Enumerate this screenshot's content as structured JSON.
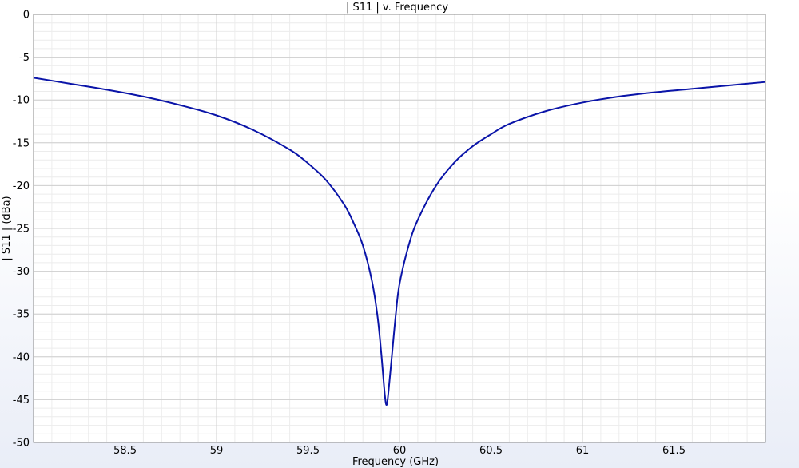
{
  "chart_data": {
    "type": "line",
    "title": "| S11 | v. Frequency",
    "xlabel": "Frequency (GHz)",
    "ylabel": "| S11 | (dBa)",
    "xlim": [
      58.0,
      62.0
    ],
    "ylim": [
      -50,
      0
    ],
    "x_ticks": [
      58.5,
      59,
      59.5,
      60,
      60.5,
      61,
      61.5
    ],
    "x_tick_labels": [
      "58.5",
      "59",
      "59.5",
      "60",
      "60.5",
      "61",
      "61.5"
    ],
    "y_ticks": [
      0,
      -5,
      -10,
      -15,
      -20,
      -25,
      -30,
      -35,
      -40,
      -45,
      -50
    ],
    "y_tick_labels": [
      "0",
      "-5",
      "-10",
      "-15",
      "-20",
      "-25",
      "-30",
      "-35",
      "-40",
      "-45",
      "-50"
    ],
    "grid": true,
    "legend": "none",
    "series_color": "#0a14a8",
    "series": [
      {
        "x": [
          58.0,
          58.2,
          58.4,
          58.6,
          58.8,
          59.0,
          59.2,
          59.4,
          59.5,
          59.6,
          59.7,
          59.75,
          59.8,
          59.85,
          59.88,
          59.9,
          59.92,
          59.93,
          59.94,
          59.96,
          59.98,
          60.0,
          60.05,
          60.1,
          60.2,
          60.3,
          60.4,
          60.5,
          60.6,
          60.8,
          61.0,
          61.2,
          61.4,
          61.6,
          61.8,
          62.0
        ],
        "values": [
          -7.4,
          -8.1,
          -8.8,
          -9.6,
          -10.6,
          -11.8,
          -13.5,
          -15.8,
          -17.4,
          -19.4,
          -22.3,
          -24.4,
          -27.0,
          -31.2,
          -35.3,
          -39.5,
          -44.5,
          -45.6,
          -44.0,
          -39.5,
          -35.0,
          -31.5,
          -27.0,
          -24.0,
          -20.0,
          -17.3,
          -15.4,
          -14.0,
          -12.8,
          -11.3,
          -10.3,
          -9.6,
          -9.1,
          -8.7,
          -8.3,
          -7.9
        ]
      }
    ]
  }
}
